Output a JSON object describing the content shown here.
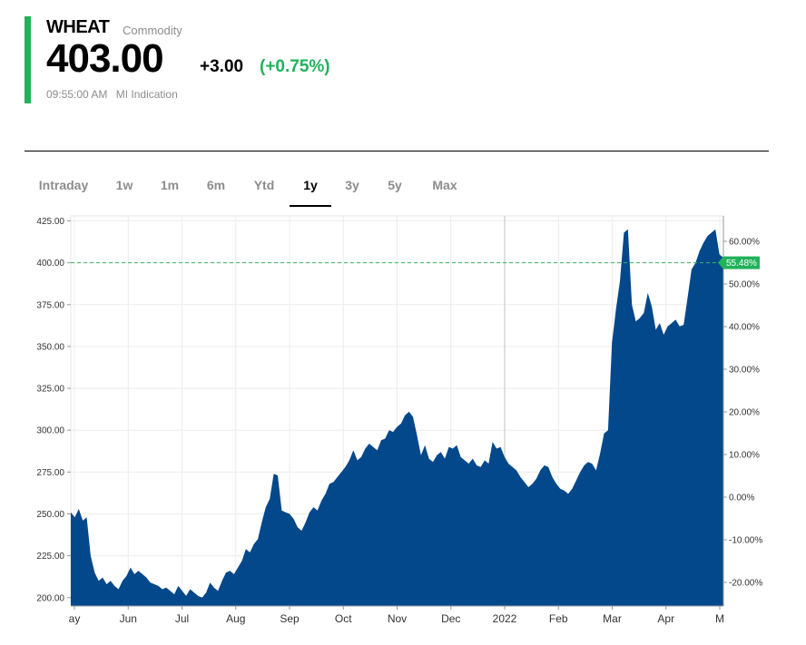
{
  "header": {
    "symbol": "WHEAT",
    "type": "Commodity",
    "price": "403.00",
    "change": "+3.00",
    "change_pct": "(+0.75%)",
    "time": "09:55:00 AM",
    "indication": "MI Indication",
    "accent_color": "#21b25a"
  },
  "tabs": [
    {
      "label": "Intraday",
      "active": false
    },
    {
      "label": "1w",
      "active": false
    },
    {
      "label": "1m",
      "active": false
    },
    {
      "label": "6m",
      "active": false
    },
    {
      "label": "Ytd",
      "active": false
    },
    {
      "label": "1y",
      "active": true
    },
    {
      "label": "3y",
      "active": false
    },
    {
      "label": "5y",
      "active": false
    },
    {
      "label": "Max",
      "active": false
    }
  ],
  "chart_data": {
    "type": "area",
    "fill_color": "#03488a",
    "ylim": [
      195,
      428
    ],
    "y_ticks": [
      "200.00",
      "225.00",
      "250.00",
      "275.00",
      "300.00",
      "325.00",
      "350.00",
      "375.00",
      "400.00",
      "425.00"
    ],
    "y2_ticks": [
      "-20.00%",
      "-10.00%",
      "0.00%",
      "10.00%",
      "20.00%",
      "30.00%",
      "40.00%",
      "50.00%",
      "60.00%"
    ],
    "x_ticks": [
      "ay",
      "Jun",
      "Jul",
      "Aug",
      "Sep",
      "Oct",
      "Nov",
      "Dec",
      "2022",
      "Feb",
      "Mar",
      "Apr",
      "M"
    ],
    "reference_line": 400,
    "current_label": "55.48%",
    "values": [
      251,
      248,
      253,
      246,
      248,
      225,
      215,
      210,
      212,
      208,
      210,
      207,
      205,
      210,
      213,
      218,
      214,
      216,
      214,
      212,
      209,
      208,
      207,
      205,
      206,
      204,
      202,
      207,
      204,
      201,
      205,
      203,
      201,
      200,
      203,
      209,
      206,
      204,
      210,
      215,
      216,
      214,
      218,
      222,
      229,
      227,
      232,
      235,
      245,
      254,
      259,
      274,
      273,
      252,
      251,
      250,
      247,
      242,
      240,
      245,
      251,
      254,
      252,
      258,
      262,
      268,
      269,
      272,
      275,
      278,
      282,
      288,
      282,
      284,
      289,
      292,
      290,
      288,
      294,
      295,
      300,
      299,
      302,
      304,
      309,
      311,
      308,
      297,
      285,
      291,
      283,
      281,
      285,
      287,
      283,
      290,
      289,
      291,
      284,
      282,
      280,
      283,
      279,
      278,
      282,
      280,
      293,
      289,
      290,
      284,
      280,
      278,
      276,
      272,
      269,
      266,
      268,
      271,
      276,
      279,
      278,
      272,
      268,
      265,
      264,
      262,
      265,
      270,
      275,
      279,
      281,
      280,
      276,
      286,
      298,
      300,
      352,
      372,
      389,
      418,
      420,
      375,
      365,
      367,
      370,
      382,
      374,
      360,
      364,
      357,
      362,
      364,
      366,
      362,
      363,
      379,
      396,
      400,
      407,
      412,
      416,
      418,
      420,
      405,
      403
    ]
  }
}
